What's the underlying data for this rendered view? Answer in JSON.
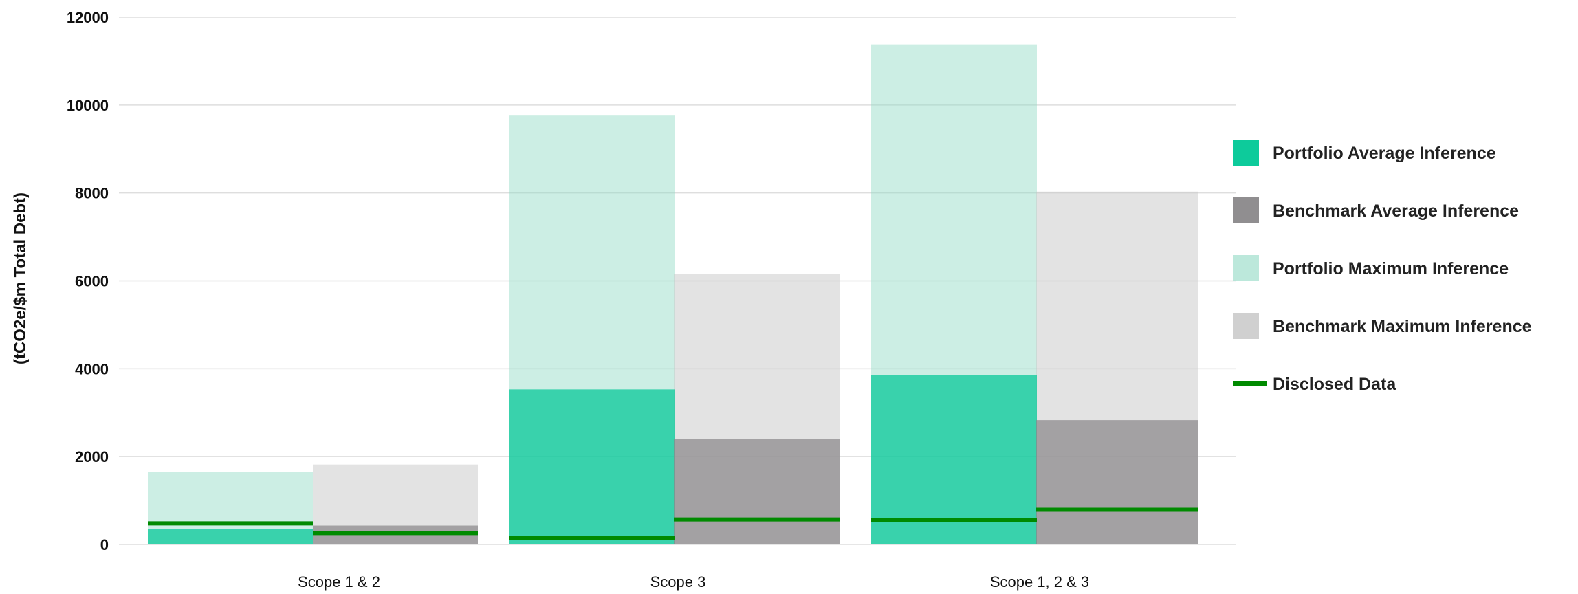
{
  "chart_data": {
    "type": "bar",
    "ylabel": "(tCO2e/$m Total Debt)",
    "ylim": [
      0,
      12000
    ],
    "yticks": [
      0,
      2000,
      4000,
      6000,
      8000,
      10000,
      12000
    ],
    "grid": true,
    "legend_position": "right",
    "categories": [
      "Scope 1 & 2",
      "Scope 3",
      "Scope 1, 2 & 3"
    ],
    "series": [
      {
        "name": "Portfolio Average Inference",
        "color": "#00c896",
        "values": [
          350,
          3530,
          3850
        ]
      },
      {
        "name": "Benchmark Average Inference",
        "color": "#8a888a",
        "values": [
          430,
          2400,
          2830
        ]
      },
      {
        "name": "Portfolio Maximum Inference",
        "color": "#8fd9c3",
        "values": [
          1650,
          9760,
          11380
        ]
      },
      {
        "name": "Benchmark Maximum Inference",
        "color": "#c8c8c8",
        "values": [
          1820,
          6160,
          8030
        ]
      },
      {
        "name": "Disclosed Data",
        "color": "#008a00",
        "values": [
          480,
          140,
          560
        ],
        "benchmark_values": [
          260,
          570,
          790
        ]
      }
    ]
  }
}
